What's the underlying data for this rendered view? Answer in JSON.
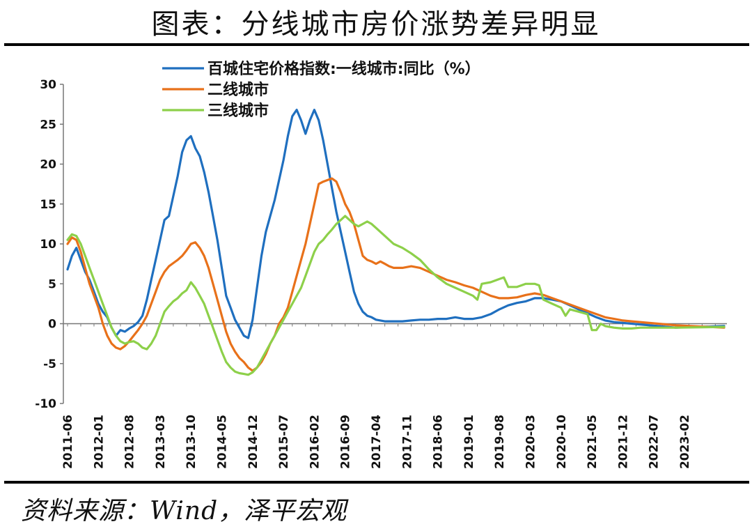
{
  "title": "图表：分线城市房价涨势差异明显",
  "source": "资料来源：Wind，泽平宏观",
  "chart_data": {
    "type": "line",
    "ylim": [
      -10,
      30
    ],
    "yticks": [
      -10,
      -5,
      0,
      5,
      10,
      15,
      20,
      25,
      30
    ],
    "ytick_labels": [
      "-10",
      "-5",
      "0",
      "5",
      "10",
      "15",
      "20",
      "25",
      "30"
    ],
    "x_start": "2011-06",
    "x_end": "2023-11",
    "x_tick_labels": [
      "2011-06",
      "2012-01",
      "2012-08",
      "2013-03",
      "2013-10",
      "2014-05",
      "2014-12",
      "2015-07",
      "2016-02",
      "2016-09",
      "2017-04",
      "2017-11",
      "2018-06",
      "2019-01",
      "2019-08",
      "2020-03",
      "2020-10",
      "2021-05",
      "2021-12",
      "2022-07",
      "2023-02"
    ],
    "legend_position": "top-left",
    "series": [
      {
        "name": "百城住宅价格指数:一线城市:同比（%）",
        "color": "#1f6fbf",
        "values": [
          [
            0,
            6.8
          ],
          [
            1,
            8.5
          ],
          [
            2,
            9.5
          ],
          [
            3,
            8.0
          ],
          [
            4,
            6.5
          ],
          [
            5,
            5.5
          ],
          [
            6,
            4.0
          ],
          [
            7,
            2.5
          ],
          [
            8,
            1.5
          ],
          [
            9,
            0.8
          ],
          [
            10,
            -0.5
          ],
          [
            11,
            -1.5
          ],
          [
            12,
            -0.8
          ],
          [
            13,
            -1.0
          ],
          [
            14,
            -0.6
          ],
          [
            15,
            -0.3
          ],
          [
            16,
            0.2
          ],
          [
            17,
            1.0
          ],
          [
            18,
            3.0
          ],
          [
            19,
            5.5
          ],
          [
            20,
            8.0
          ],
          [
            21,
            10.5
          ],
          [
            22,
            13.0
          ],
          [
            23,
            13.5
          ],
          [
            24,
            16.0
          ],
          [
            25,
            18.5
          ],
          [
            26,
            21.5
          ],
          [
            27,
            23.0
          ],
          [
            28,
            23.5
          ],
          [
            29,
            22.0
          ],
          [
            30,
            21.0
          ],
          [
            31,
            19.0
          ],
          [
            32,
            16.5
          ],
          [
            33,
            13.5
          ],
          [
            34,
            10.5
          ],
          [
            35,
            7.0
          ],
          [
            36,
            3.5
          ],
          [
            37,
            2.0
          ],
          [
            38,
            0.5
          ],
          [
            39,
            -0.5
          ],
          [
            40,
            -1.5
          ],
          [
            41,
            -1.8
          ],
          [
            42,
            0.5
          ],
          [
            43,
            4.5
          ],
          [
            44,
            8.5
          ],
          [
            45,
            11.5
          ],
          [
            46,
            13.5
          ],
          [
            47,
            15.5
          ],
          [
            48,
            18.0
          ],
          [
            49,
            20.5
          ],
          [
            50,
            23.5
          ],
          [
            51,
            26.0
          ],
          [
            52,
            26.8
          ],
          [
            53,
            25.5
          ],
          [
            54,
            23.8
          ],
          [
            55,
            25.5
          ],
          [
            56,
            26.8
          ],
          [
            57,
            25.5
          ],
          [
            58,
            23.0
          ],
          [
            59,
            20.0
          ],
          [
            60,
            17.0
          ],
          [
            61,
            14.0
          ],
          [
            62,
            11.5
          ],
          [
            63,
            9.0
          ],
          [
            64,
            6.5
          ],
          [
            65,
            4.0
          ],
          [
            66,
            2.5
          ],
          [
            67,
            1.5
          ],
          [
            68,
            1.0
          ],
          [
            69,
            0.8
          ],
          [
            70,
            0.5
          ],
          [
            72,
            0.3
          ],
          [
            74,
            0.3
          ],
          [
            76,
            0.3
          ],
          [
            78,
            0.4
          ],
          [
            80,
            0.5
          ],
          [
            82,
            0.5
          ],
          [
            84,
            0.6
          ],
          [
            86,
            0.6
          ],
          [
            88,
            0.8
          ],
          [
            90,
            0.6
          ],
          [
            92,
            0.6
          ],
          [
            94,
            0.8
          ],
          [
            96,
            1.2
          ],
          [
            98,
            1.8
          ],
          [
            100,
            2.3
          ],
          [
            102,
            2.6
          ],
          [
            104,
            2.8
          ],
          [
            106,
            3.2
          ],
          [
            108,
            3.2
          ],
          [
            110,
            3.0
          ],
          [
            112,
            2.8
          ],
          [
            114,
            2.3
          ],
          [
            116,
            1.8
          ],
          [
            118,
            1.3
          ],
          [
            120,
            0.8
          ],
          [
            122,
            0.4
          ],
          [
            124,
            0.2
          ],
          [
            126,
            0.1
          ],
          [
            128,
            0.0
          ],
          [
            130,
            -0.1
          ],
          [
            132,
            -0.2
          ],
          [
            134,
            -0.3
          ],
          [
            136,
            -0.4
          ],
          [
            138,
            -0.5
          ],
          [
            149,
            -0.3
          ]
        ]
      },
      {
        "name": "二线城市",
        "color": "#e8711a",
        "values": [
          [
            0,
            10.0
          ],
          [
            1,
            10.8
          ],
          [
            2,
            10.5
          ],
          [
            3,
            9.0
          ],
          [
            4,
            7.0
          ],
          [
            5,
            5.0
          ],
          [
            6,
            3.5
          ],
          [
            7,
            2.0
          ],
          [
            8,
            0.0
          ],
          [
            9,
            -1.5
          ],
          [
            10,
            -2.5
          ],
          [
            11,
            -3.0
          ],
          [
            12,
            -3.2
          ],
          [
            13,
            -2.8
          ],
          [
            14,
            -2.2
          ],
          [
            15,
            -1.5
          ],
          [
            16,
            -0.8
          ],
          [
            17,
            0.0
          ],
          [
            18,
            1.0
          ],
          [
            19,
            2.5
          ],
          [
            20,
            4.0
          ],
          [
            21,
            5.5
          ],
          [
            22,
            6.5
          ],
          [
            23,
            7.2
          ],
          [
            24,
            7.6
          ],
          [
            25,
            8.0
          ],
          [
            26,
            8.5
          ],
          [
            27,
            9.2
          ],
          [
            28,
            10.0
          ],
          [
            29,
            10.2
          ],
          [
            30,
            9.5
          ],
          [
            31,
            8.5
          ],
          [
            32,
            7.0
          ],
          [
            33,
            5.0
          ],
          [
            34,
            3.0
          ],
          [
            35,
            1.0
          ],
          [
            36,
            -1.0
          ],
          [
            37,
            -2.5
          ],
          [
            38,
            -3.5
          ],
          [
            39,
            -4.3
          ],
          [
            40,
            -4.8
          ],
          [
            41,
            -5.5
          ],
          [
            42,
            -5.9
          ],
          [
            43,
            -5.5
          ],
          [
            44,
            -4.8
          ],
          [
            45,
            -3.8
          ],
          [
            46,
            -2.5
          ],
          [
            47,
            -1.5
          ],
          [
            48,
            0.0
          ],
          [
            49,
            0.8
          ],
          [
            50,
            2.0
          ],
          [
            51,
            4.0
          ],
          [
            52,
            6.0
          ],
          [
            53,
            8.0
          ],
          [
            54,
            10.0
          ],
          [
            55,
            12.5
          ],
          [
            56,
            15.0
          ],
          [
            57,
            17.5
          ],
          [
            58,
            17.8
          ],
          [
            59,
            18.0
          ],
          [
            60,
            18.2
          ],
          [
            61,
            17.8
          ],
          [
            62,
            16.5
          ],
          [
            63,
            15.0
          ],
          [
            64,
            14.0
          ],
          [
            65,
            12.5
          ],
          [
            66,
            10.5
          ],
          [
            67,
            8.5
          ],
          [
            68,
            8.0
          ],
          [
            69,
            7.8
          ],
          [
            70,
            7.5
          ],
          [
            71,
            7.8
          ],
          [
            72,
            7.5
          ],
          [
            73,
            7.2
          ],
          [
            74,
            7.0
          ],
          [
            76,
            7.0
          ],
          [
            78,
            7.2
          ],
          [
            80,
            7.0
          ],
          [
            82,
            6.5
          ],
          [
            84,
            6.0
          ],
          [
            86,
            5.5
          ],
          [
            88,
            5.2
          ],
          [
            90,
            4.8
          ],
          [
            92,
            4.5
          ],
          [
            94,
            4.0
          ],
          [
            96,
            3.5
          ],
          [
            98,
            3.2
          ],
          [
            100,
            3.2
          ],
          [
            102,
            3.3
          ],
          [
            104,
            3.6
          ],
          [
            106,
            3.8
          ],
          [
            108,
            3.6
          ],
          [
            110,
            3.2
          ],
          [
            112,
            2.8
          ],
          [
            114,
            2.4
          ],
          [
            116,
            2.0
          ],
          [
            118,
            1.6
          ],
          [
            120,
            1.2
          ],
          [
            122,
            0.8
          ],
          [
            124,
            0.6
          ],
          [
            126,
            0.4
          ],
          [
            128,
            0.3
          ],
          [
            130,
            0.2
          ],
          [
            132,
            0.1
          ],
          [
            134,
            0.0
          ],
          [
            136,
            -0.1
          ],
          [
            138,
            -0.2
          ],
          [
            149,
            -0.5
          ]
        ]
      },
      {
        "name": "三线城市",
        "color": "#8dd04a",
        "values": [
          [
            0,
            10.5
          ],
          [
            1,
            11.2
          ],
          [
            2,
            11.0
          ],
          [
            3,
            10.0
          ],
          [
            4,
            8.5
          ],
          [
            5,
            7.0
          ],
          [
            6,
            5.5
          ],
          [
            7,
            4.0
          ],
          [
            8,
            2.5
          ],
          [
            9,
            1.0
          ],
          [
            10,
            -0.5
          ],
          [
            11,
            -1.5
          ],
          [
            12,
            -2.2
          ],
          [
            13,
            -2.5
          ],
          [
            14,
            -2.3
          ],
          [
            15,
            -2.2
          ],
          [
            16,
            -2.5
          ],
          [
            17,
            -3.0
          ],
          [
            18,
            -3.2
          ],
          [
            19,
            -2.5
          ],
          [
            20,
            -1.5
          ],
          [
            21,
            0.0
          ],
          [
            22,
            1.5
          ],
          [
            23,
            2.2
          ],
          [
            24,
            2.8
          ],
          [
            25,
            3.2
          ],
          [
            26,
            3.8
          ],
          [
            27,
            4.2
          ],
          [
            28,
            5.2
          ],
          [
            29,
            4.5
          ],
          [
            30,
            3.5
          ],
          [
            31,
            2.5
          ],
          [
            32,
            1.0
          ],
          [
            33,
            -0.5
          ],
          [
            34,
            -2.0
          ],
          [
            35,
            -3.5
          ],
          [
            36,
            -4.8
          ],
          [
            37,
            -5.5
          ],
          [
            38,
            -6.0
          ],
          [
            39,
            -6.2
          ],
          [
            40,
            -6.3
          ],
          [
            41,
            -6.4
          ],
          [
            42,
            -6.1
          ],
          [
            43,
            -5.5
          ],
          [
            44,
            -4.5
          ],
          [
            45,
            -3.5
          ],
          [
            46,
            -2.5
          ],
          [
            47,
            -1.5
          ],
          [
            48,
            -0.5
          ],
          [
            49,
            0.5
          ],
          [
            50,
            1.5
          ],
          [
            51,
            2.5
          ],
          [
            52,
            3.5
          ],
          [
            53,
            4.5
          ],
          [
            54,
            6.0
          ],
          [
            55,
            7.5
          ],
          [
            56,
            9.0
          ],
          [
            57,
            10.0
          ],
          [
            58,
            10.5
          ],
          [
            59,
            11.2
          ],
          [
            60,
            11.8
          ],
          [
            61,
            12.5
          ],
          [
            62,
            13.0
          ],
          [
            63,
            13.5
          ],
          [
            64,
            13.0
          ],
          [
            65,
            12.5
          ],
          [
            66,
            12.2
          ],
          [
            67,
            12.5
          ],
          [
            68,
            12.8
          ],
          [
            69,
            12.5
          ],
          [
            70,
            12.0
          ],
          [
            72,
            11.0
          ],
          [
            74,
            10.0
          ],
          [
            76,
            9.5
          ],
          [
            78,
            8.8
          ],
          [
            80,
            8.0
          ],
          [
            82,
            6.8
          ],
          [
            84,
            5.8
          ],
          [
            86,
            5.0
          ],
          [
            88,
            4.5
          ],
          [
            90,
            4.0
          ],
          [
            92,
            3.5
          ],
          [
            93,
            3.0
          ],
          [
            94,
            5.0
          ],
          [
            96,
            5.2
          ],
          [
            98,
            5.6
          ],
          [
            99,
            5.8
          ],
          [
            100,
            4.6
          ],
          [
            102,
            4.6
          ],
          [
            104,
            5.0
          ],
          [
            106,
            5.0
          ],
          [
            107,
            4.8
          ],
          [
            108,
            3.0
          ],
          [
            110,
            2.5
          ],
          [
            112,
            2.0
          ],
          [
            113,
            1.0
          ],
          [
            114,
            1.8
          ],
          [
            116,
            1.5
          ],
          [
            118,
            1.2
          ],
          [
            119,
            -0.8
          ],
          [
            120,
            -0.8
          ],
          [
            121,
            0.0
          ],
          [
            122,
            -0.3
          ],
          [
            124,
            -0.5
          ],
          [
            126,
            -0.6
          ],
          [
            128,
            -0.6
          ],
          [
            130,
            -0.5
          ],
          [
            132,
            -0.5
          ],
          [
            134,
            -0.5
          ],
          [
            136,
            -0.5
          ],
          [
            138,
            -0.5
          ],
          [
            149,
            -0.4
          ]
        ]
      }
    ]
  }
}
